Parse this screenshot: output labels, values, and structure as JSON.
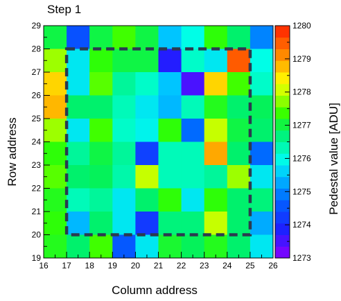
{
  "chart_data": {
    "type": "heatmap",
    "title": "Step 1",
    "xlabel": "Column address",
    "ylabel": "Row address",
    "colorbar_label": "Pedestal value [ADU]",
    "x_range": [
      16,
      26
    ],
    "y_range": [
      19,
      29
    ],
    "x_ticks": [
      "16",
      "17",
      "18",
      "19",
      "20",
      "21",
      "22",
      "23",
      "24",
      "25",
      "26"
    ],
    "y_ticks": [
      "19",
      "20",
      "21",
      "22",
      "23",
      "24",
      "25",
      "26",
      "27",
      "28",
      "29"
    ],
    "z_range": [
      1273,
      1280
    ],
    "z_ticks": [
      "1273",
      "1274",
      "1275",
      "1276",
      "1277",
      "1278",
      "1279",
      "1280"
    ],
    "colorscale_stops": [
      [
        0.0,
        "#8a00ff"
      ],
      [
        0.12,
        "#1e1eff"
      ],
      [
        0.25,
        "#0064ff"
      ],
      [
        0.36,
        "#00c8ff"
      ],
      [
        0.43,
        "#00ffe6"
      ],
      [
        0.55,
        "#00f064"
      ],
      [
        0.62,
        "#32ff00"
      ],
      [
        0.7,
        "#b4ff00"
      ],
      [
        0.76,
        "#ffff00"
      ],
      [
        0.86,
        "#ff9600"
      ],
      [
        1.0,
        "#ff1e00"
      ]
    ],
    "x_columns": [
      16,
      17,
      18,
      19,
      20,
      21,
      22,
      23,
      24,
      25
    ],
    "rows": [
      {
        "row": 28,
        "values": [
          1277.0,
          1274.5,
          1277.0,
          1277.4,
          1277.0,
          1275.5,
          1276.0,
          1277.3,
          1276.8,
          1275.0
        ]
      },
      {
        "row": 27,
        "values": [
          1277.8,
          1275.8,
          1277.3,
          1277.0,
          1277.0,
          1273.8,
          1276.2,
          1275.8,
          1279.5,
          1276.0
        ]
      },
      {
        "row": 26,
        "values": [
          1278.6,
          1275.8,
          1277.5,
          1276.5,
          1276.2,
          1275.5,
          1273.5,
          1278.6,
          1277.4,
          1276.2
        ]
      },
      {
        "row": 25,
        "values": [
          1278.8,
          1276.8,
          1276.8,
          1276.3,
          1275.8,
          1275.4,
          1276.3,
          1277.2,
          1276.8,
          1276.9
        ]
      },
      {
        "row": 24,
        "values": [
          1277.8,
          1275.8,
          1277.4,
          1276.2,
          1275.9,
          1277.3,
          1274.8,
          1278.0,
          1277.0,
          1276.8
        ]
      },
      {
        "row": 23,
        "values": [
          1277.3,
          1276.5,
          1277.0,
          1276.5,
          1274.3,
          1276.3,
          1276.3,
          1278.9,
          1276.8,
          1274.8
        ]
      },
      {
        "row": 22,
        "values": [
          1277.5,
          1276.8,
          1276.9,
          1276.4,
          1278.0,
          1276.3,
          1276.3,
          1276.5,
          1277.8,
          1275.8
        ]
      },
      {
        "row": 21,
        "values": [
          1277.2,
          1276.3,
          1276.5,
          1275.8,
          1276.8,
          1277.3,
          1275.8,
          1277.3,
          1276.8,
          1276.7
        ]
      },
      {
        "row": 20,
        "values": [
          1277.3,
          1275.4,
          1276.8,
          1275.8,
          1274.2,
          1276.7,
          1276.7,
          1278.0,
          1276.8,
          1275.3
        ]
      },
      {
        "row": 19,
        "values": [
          1277.2,
          1276.8,
          1277.4,
          1274.6,
          1275.8,
          1277.1,
          1276.9,
          1277.2,
          1276.8,
          1275.8
        ]
      }
    ],
    "highlight_region": {
      "x": [
        17,
        25
      ],
      "y": [
        20,
        28
      ],
      "style": "dashed",
      "color": "#2b3a4f"
    },
    "grid": false
  }
}
